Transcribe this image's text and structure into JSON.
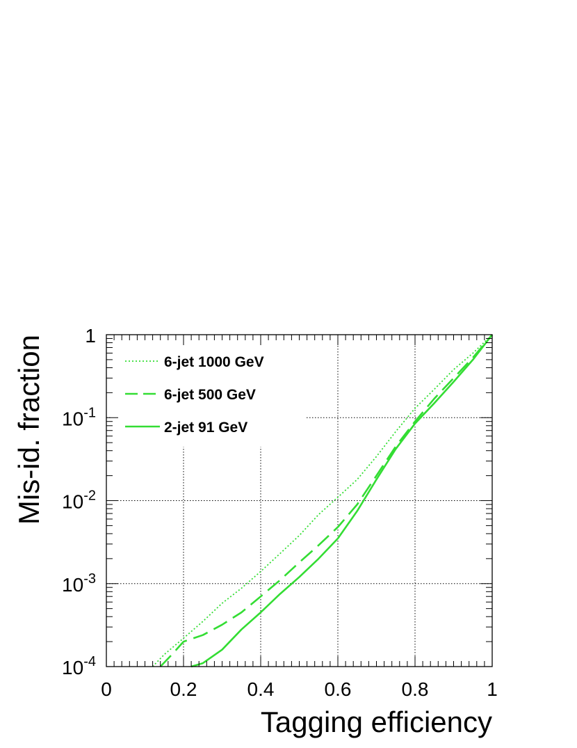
{
  "chart_data": {
    "type": "line",
    "xlabel": "Tagging efficiency",
    "ylabel": "Mis-id. fraction",
    "xlim": [
      0,
      1
    ],
    "ylim": [
      0.0001,
      1
    ],
    "yscale": "log",
    "grid": true,
    "legend_position": "top-left",
    "x_ticks": [
      {
        "value": 0,
        "label": "0"
      },
      {
        "value": 0.2,
        "label": "0.2"
      },
      {
        "value": 0.4,
        "label": "0.4"
      },
      {
        "value": 0.6,
        "label": "0.6"
      },
      {
        "value": 0.8,
        "label": "0.8"
      },
      {
        "value": 1,
        "label": "1"
      }
    ],
    "y_ticks": [
      {
        "value": 1,
        "base": "1",
        "exp": ""
      },
      {
        "value": 0.1,
        "base": "10",
        "exp": "-1"
      },
      {
        "value": 0.01,
        "base": "10",
        "exp": "-2"
      },
      {
        "value": 0.001,
        "base": "10",
        "exp": "-3"
      },
      {
        "value": 0.0001,
        "base": "10",
        "exp": "-4"
      }
    ],
    "series": [
      {
        "name": "6-jet 1000 GeV",
        "style": "dotted",
        "color": "#33dd33",
        "x": [
          0.12,
          0.15,
          0.2,
          0.25,
          0.3,
          0.35,
          0.4,
          0.45,
          0.5,
          0.55,
          0.6,
          0.65,
          0.7,
          0.75,
          0.8,
          0.85,
          0.9,
          0.95,
          1.0
        ],
        "y": [
          0.0001,
          0.00014,
          0.00022,
          0.00035,
          0.00058,
          0.00088,
          0.0014,
          0.0023,
          0.0038,
          0.0068,
          0.011,
          0.018,
          0.034,
          0.068,
          0.13,
          0.22,
          0.38,
          0.6,
          1.0
        ]
      },
      {
        "name": "6-jet 500 GeV",
        "style": "dashed",
        "color": "#33dd33",
        "x": [
          0.14,
          0.17,
          0.2,
          0.25,
          0.3,
          0.35,
          0.4,
          0.45,
          0.5,
          0.55,
          0.6,
          0.65,
          0.7,
          0.75,
          0.8,
          0.85,
          0.9,
          0.95,
          1.0
        ],
        "y": [
          0.0001,
          0.00014,
          0.0002,
          0.00024,
          0.00032,
          0.00045,
          0.0007,
          0.0011,
          0.0018,
          0.0029,
          0.0048,
          0.009,
          0.02,
          0.045,
          0.09,
          0.17,
          0.3,
          0.53,
          1.0
        ]
      },
      {
        "name": "2-jet 91 GeV",
        "style": "solid",
        "color": "#33dd33",
        "x": [
          0.22,
          0.25,
          0.3,
          0.35,
          0.4,
          0.45,
          0.5,
          0.55,
          0.6,
          0.65,
          0.7,
          0.75,
          0.8,
          0.85,
          0.9,
          0.95,
          1.0
        ],
        "y": [
          0.0001,
          0.00011,
          0.00016,
          0.00028,
          0.00045,
          0.00075,
          0.0012,
          0.002,
          0.0035,
          0.0075,
          0.018,
          0.042,
          0.085,
          0.15,
          0.27,
          0.5,
          1.0
        ]
      }
    ]
  }
}
